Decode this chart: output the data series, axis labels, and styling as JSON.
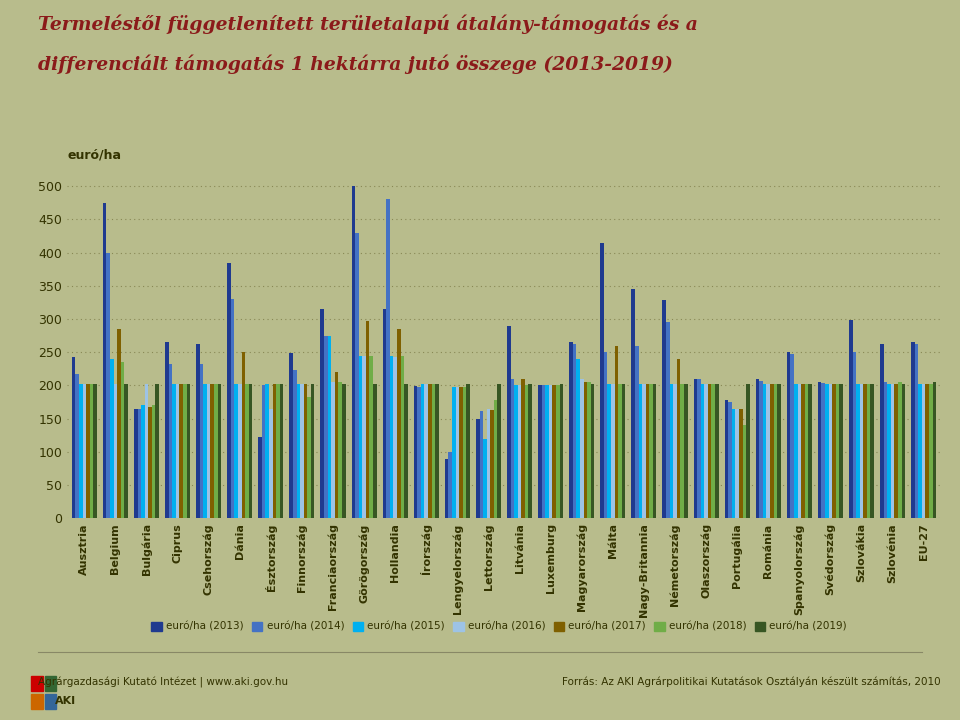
{
  "title_line1": "Termeléstől függetlenített területalapú átalány-támogatás és a",
  "title_line2": "differenciált támogatás 1 hektárra jutó összege (2013-2019)",
  "ylabel": "euró/ha",
  "background_color": "#b8bc8c",
  "plot_bg_color": "#b8bc8c",
  "title_color": "#8b1a1a",
  "categories": [
    "Ausztria",
    "Belgium",
    "Bulgária",
    "Ciprus",
    "Csehország",
    "Dánia",
    "Észtország",
    "Finnország",
    "Franciaország",
    "Görögország",
    "Hollandia",
    "Írország",
    "Lengyelország",
    "Lettország",
    "Litvánia",
    "Luxemburg",
    "Magyarország",
    "Málta",
    "Nagy-Britannia",
    "Németország",
    "Olaszország",
    "Portugália",
    "Románia",
    "Spanyolország",
    "Svédország",
    "Szlovákia",
    "Szlovénia",
    "EU-27"
  ],
  "series": {
    "euró/ha (2013)": {
      "color": "#1f3a8f",
      "values": [
        243,
        475,
        165,
        265,
        262,
        385,
        123,
        249,
        315,
        500,
        315,
        199,
        90,
        149,
        290,
        200,
        265,
        415,
        345,
        328,
        210,
        178,
        210,
        250,
        205,
        299,
        263,
        265
      ]
    },
    "euró/ha (2014)": {
      "color": "#4472c4",
      "values": [
        218,
        400,
        165,
        232,
        232,
        330,
        200,
        223,
        275,
        430,
        480,
        197,
        100,
        162,
        210,
        200,
        262,
        250,
        260,
        295,
        210,
        175,
        207,
        248,
        203,
        250,
        205,
        263
      ]
    },
    "euró/ha (2015)": {
      "color": "#00b0f0",
      "values": [
        202,
        240,
        170,
        202,
        202,
        202,
        202,
        202,
        275,
        245,
        245,
        202,
        197,
        120,
        200,
        200,
        240,
        202,
        202,
        202,
        202,
        165,
        202,
        202,
        202,
        202,
        202,
        202
      ]
    },
    "euró/ha (2016)": {
      "color": "#9dc3e6",
      "values": [
        202,
        202,
        202,
        202,
        202,
        202,
        164,
        202,
        205,
        245,
        243,
        202,
        197,
        165,
        200,
        200,
        210,
        202,
        202,
        202,
        202,
        165,
        202,
        202,
        202,
        202,
        202,
        202
      ]
    },
    "euró/ha (2017)": {
      "color": "#7f6000",
      "values": [
        202,
        285,
        168,
        202,
        202,
        250,
        202,
        202,
        220,
        297,
        285,
        202,
        197,
        163,
        210,
        200,
        205,
        260,
        202,
        240,
        202,
        165,
        202,
        202,
        202,
        202,
        202,
        202
      ]
    },
    "euró/ha (2018)": {
      "color": "#70ad47",
      "values": [
        202,
        235,
        170,
        202,
        202,
        202,
        202,
        182,
        205,
        245,
        245,
        202,
        197,
        178,
        200,
        200,
        205,
        202,
        202,
        202,
        202,
        140,
        202,
        202,
        202,
        202,
        205,
        202
      ]
    },
    "euró/ha (2019)": {
      "color": "#375623",
      "values": [
        202,
        202,
        202,
        202,
        202,
        202,
        202,
        202,
        202,
        202,
        202,
        202,
        202,
        202,
        202,
        202,
        202,
        202,
        202,
        202,
        202,
        202,
        202,
        202,
        202,
        202,
        202,
        205
      ]
    }
  },
  "ylim": [
    0,
    520
  ],
  "yticks": [
    0,
    50,
    100,
    150,
    200,
    250,
    300,
    350,
    400,
    450,
    500
  ],
  "footer_left": "Agrárgazdasági Kutató Intézet | www.aki.gov.hu",
  "footer_right": "Forrás: Az AKI Agrárpolitikai Kutatások Osztályán készült számítás, 2010"
}
